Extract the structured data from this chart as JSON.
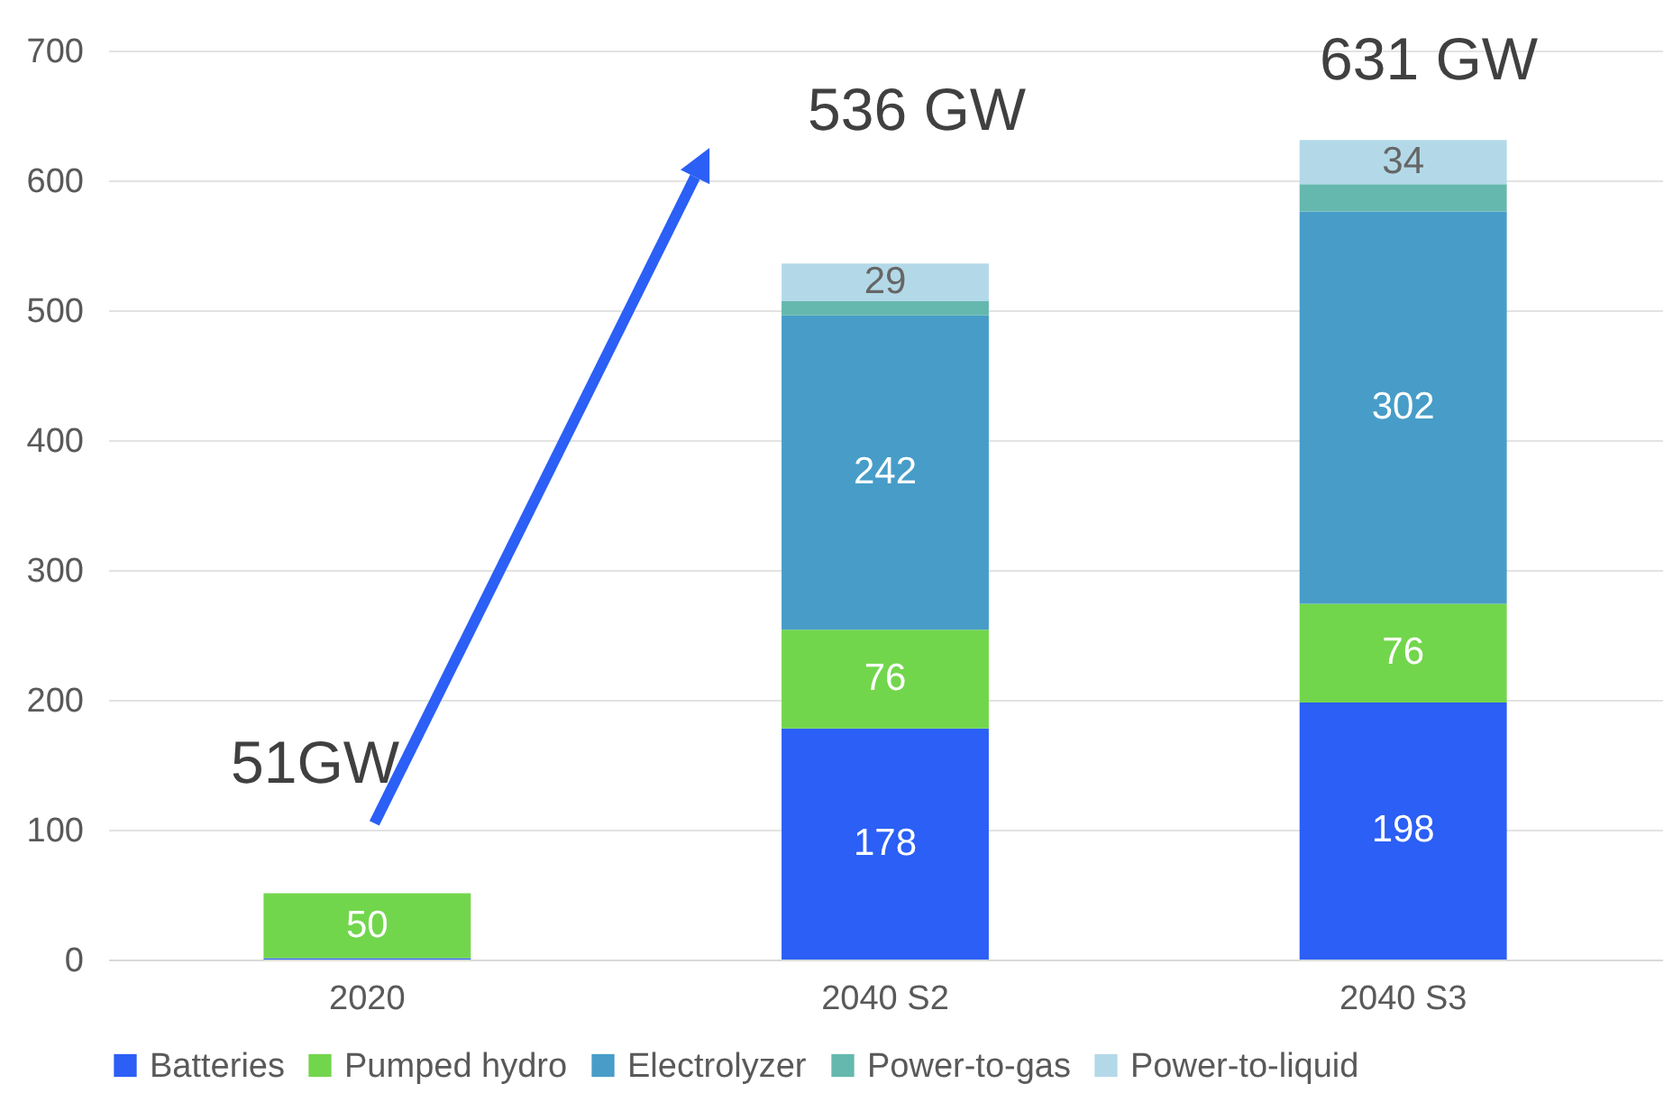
{
  "chart_data": {
    "type": "bar",
    "stacked": true,
    "categories": [
      "2020",
      "2040 S2",
      "2040 S3"
    ],
    "series": [
      {
        "name": "Batteries",
        "color": "#2b5ff5",
        "values": [
          1,
          178,
          198
        ],
        "value_labels": [
          null,
          "178",
          "198"
        ]
      },
      {
        "name": "Pumped hydro",
        "color": "#72d64c",
        "values": [
          50,
          76,
          76
        ],
        "value_labels": [
          "50",
          "76",
          "76"
        ]
      },
      {
        "name": "Electrolyzer",
        "color": "#479dc8",
        "values": [
          0,
          242,
          302
        ],
        "value_labels": [
          null,
          "242",
          "302"
        ]
      },
      {
        "name": "Power-to-gas",
        "color": "#65b8ae",
        "values": [
          0,
          11,
          21
        ],
        "value_labels": [
          null,
          null,
          null
        ]
      },
      {
        "name": "Power-to-liquid",
        "color": "#b3d9e8",
        "values": [
          0,
          29,
          34
        ],
        "value_labels": [
          null,
          "29",
          "34"
        ]
      }
    ],
    "ylim": [
      0,
      700
    ],
    "yticks": [
      0,
      100,
      200,
      300,
      400,
      500,
      600,
      700
    ],
    "grid": "y",
    "legend": "bottom",
    "annotations": [
      "51GW",
      "536 GW",
      "631 GW"
    ]
  }
}
